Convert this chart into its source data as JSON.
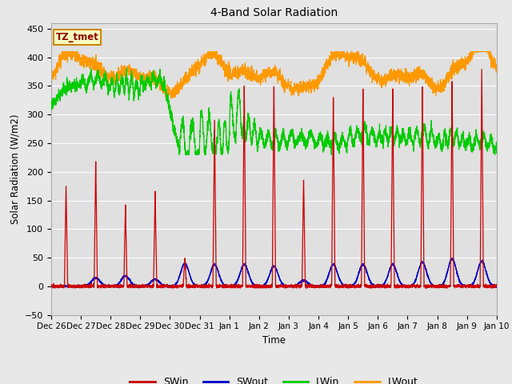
{
  "title": "4-Band Solar Radiation",
  "xlabel": "Time",
  "ylabel": "Solar Radiation (W/m2)",
  "ylim": [
    -50,
    460
  ],
  "xlim": [
    0,
    15
  ],
  "figsize": [
    6.4,
    4.8
  ],
  "dpi": 100,
  "background_color": "#e8e8e8",
  "plot_bg_color": "#e0e0e0",
  "legend_label": "TZ_tmet",
  "series_colors": {
    "SWin": "#cc0000",
    "SWout": "#0000cc",
    "LWin": "#00cc00",
    "LWout": "#ff9900"
  },
  "x_tick_labels": [
    "Dec 26",
    "Dec 27",
    "Dec 28",
    "Dec 29",
    "Dec 30",
    "Dec 31",
    "Jan 1",
    "Jan 2",
    "Jan 3",
    "Jan 4",
    "Jan 5",
    "Jan 6",
    "Jan 7",
    "Jan 8",
    "Jan 9",
    "Jan 10"
  ],
  "n_days": 15,
  "samples_per_day": 288,
  "peaks_swin": [
    175,
    220,
    145,
    165,
    50,
    295,
    360,
    360,
    190,
    335,
    350,
    350,
    350,
    360,
    380
  ],
  "peaks_swout": [
    0,
    15,
    18,
    12,
    40,
    38,
    38,
    35,
    10,
    38,
    38,
    38,
    42,
    48,
    44
  ],
  "yticks": [
    -50,
    0,
    50,
    100,
    150,
    200,
    250,
    300,
    350,
    400,
    450
  ]
}
